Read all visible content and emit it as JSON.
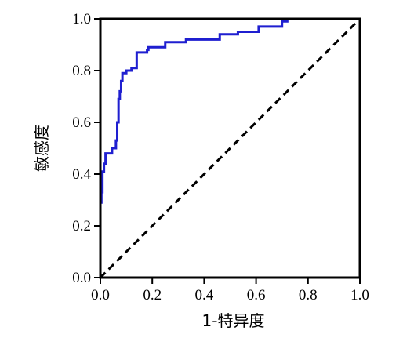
{
  "chart_data": {
    "type": "line",
    "xlabel": "1-特异度",
    "ylabel": "敏感度",
    "xlim": [
      0,
      1
    ],
    "ylim": [
      0,
      1
    ],
    "x_ticks": [
      0,
      0.2,
      0.4,
      0.6,
      0.8,
      1.0
    ],
    "y_ticks": [
      0,
      0.2,
      0.4,
      0.6,
      0.8,
      1.0
    ],
    "x_tick_labels": [
      "0.0",
      "0.2",
      "0.4",
      "0.6",
      "0.8",
      "1.0"
    ],
    "y_tick_labels": [
      "0.0",
      "0.2",
      "0.4",
      "0.6",
      "0.8",
      "1.0"
    ],
    "grid": false,
    "series": [
      {
        "style": "solid",
        "color": "#1f1fd0",
        "points": [
          [
            0.0,
            0.0
          ],
          [
            0.0,
            0.29
          ],
          [
            0.004,
            0.29
          ],
          [
            0.004,
            0.33
          ],
          [
            0.008,
            0.33
          ],
          [
            0.008,
            0.41
          ],
          [
            0.014,
            0.41
          ],
          [
            0.014,
            0.44
          ],
          [
            0.02,
            0.44
          ],
          [
            0.02,
            0.48
          ],
          [
            0.045,
            0.48
          ],
          [
            0.045,
            0.5
          ],
          [
            0.06,
            0.5
          ],
          [
            0.06,
            0.53
          ],
          [
            0.065,
            0.53
          ],
          [
            0.065,
            0.6
          ],
          [
            0.07,
            0.6
          ],
          [
            0.07,
            0.69
          ],
          [
            0.075,
            0.69
          ],
          [
            0.075,
            0.72
          ],
          [
            0.08,
            0.72
          ],
          [
            0.08,
            0.76
          ],
          [
            0.085,
            0.76
          ],
          [
            0.085,
            0.79
          ],
          [
            0.1,
            0.79
          ],
          [
            0.1,
            0.8
          ],
          [
            0.12,
            0.8
          ],
          [
            0.12,
            0.81
          ],
          [
            0.14,
            0.81
          ],
          [
            0.14,
            0.87
          ],
          [
            0.18,
            0.87
          ],
          [
            0.18,
            0.88
          ],
          [
            0.185,
            0.88
          ],
          [
            0.185,
            0.89
          ],
          [
            0.25,
            0.89
          ],
          [
            0.25,
            0.91
          ],
          [
            0.33,
            0.91
          ],
          [
            0.33,
            0.92
          ],
          [
            0.46,
            0.92
          ],
          [
            0.46,
            0.94
          ],
          [
            0.53,
            0.94
          ],
          [
            0.53,
            0.95
          ],
          [
            0.61,
            0.95
          ],
          [
            0.61,
            0.97
          ],
          [
            0.7,
            0.97
          ],
          [
            0.7,
            0.99
          ],
          [
            0.72,
            0.99
          ],
          [
            0.72,
            1.0
          ],
          [
            1.0,
            1.0
          ]
        ]
      },
      {
        "style": "dashed",
        "color": "#000000",
        "points": [
          [
            0,
            0
          ],
          [
            1,
            1
          ]
        ]
      }
    ]
  }
}
